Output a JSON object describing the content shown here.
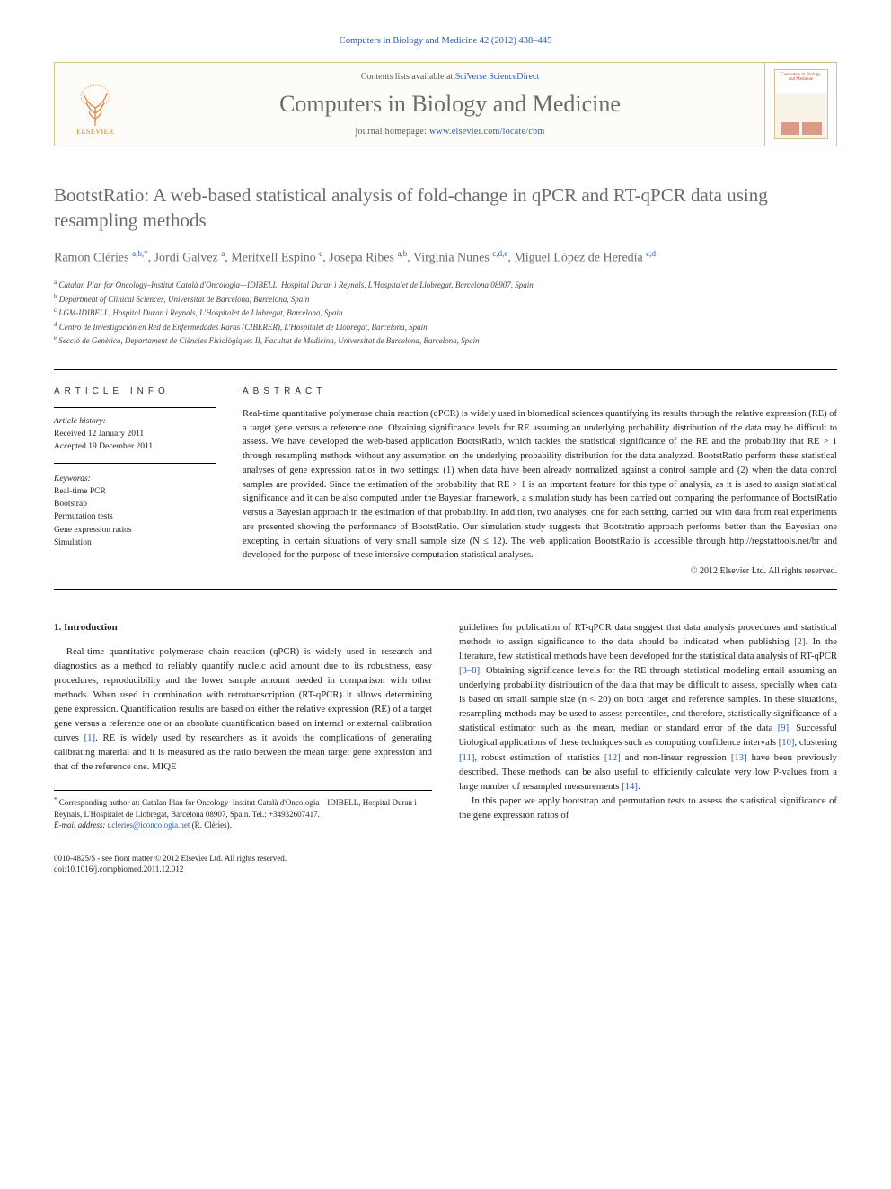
{
  "citation": {
    "journal_link": "Computers in Biology and Medicine",
    "vol_issue": "42 (2012) 438–445"
  },
  "banner": {
    "contents_prefix": "Contents lists available at ",
    "contents_link": "SciVerse ScienceDirect",
    "journal_name": "Computers in Biology and Medicine",
    "homepage_prefix": "journal homepage: ",
    "homepage_link": "www.elsevier.com/locate/cbm",
    "elsevier_label": "ELSEVIER",
    "cover_title": "Computers in Biology and Medicine"
  },
  "title": "BootstRatio: A web-based statistical analysis of fold-change in qPCR and RT-qPCR data using resampling methods",
  "authors_html": "Ramon Clèries <span class='sup'>a,b,*</span>, Jordi Galvez <span class='sup'>a</span>, Meritxell Espino <span class='sup'>c</span>, Josepa Ribes <span class='sup'>a,b</span>, Virginia Nunes <span class='sup'>c,d,e</span>, Miguel López de Heredia <span class='sup'>c,d</span>",
  "affiliations": [
    {
      "key": "a",
      "text": "Catalan Plan for Oncology–Institut Català d'Oncologia—IDIBELL, Hospital Duran i Reynals, L'Hospitalet de Llobregat, Barcelona 08907, Spain"
    },
    {
      "key": "b",
      "text": "Department of Clinical Sciences, Universitat de Barcelona, Barcelona, Spain"
    },
    {
      "key": "c",
      "text": "LGM-IDIBELL, Hospital Duran i Reynals, L'Hospitalet de Llobregat, Barcelona, Spain"
    },
    {
      "key": "d",
      "text": "Centro de Investigación en Red de Enfermedades Raras (CIBERER), L'Hospitalet de Llobregat, Barcelona, Spain"
    },
    {
      "key": "e",
      "text": "Secció de Genètica, Departament de Ciències Fisiològiques II, Facultat de Medicina, Universitat de Barcelona, Barcelona, Spain"
    }
  ],
  "info": {
    "heading": "ARTICLE INFO",
    "history_label": "Article history:",
    "received": "Received 12 January 2011",
    "accepted": "Accepted 19 December 2011",
    "keywords_label": "Keywords:",
    "keywords": [
      "Real-time PCR",
      "Bootstrap",
      "Permutation tests",
      "Gene expression ratios",
      "Simulation"
    ]
  },
  "abstract": {
    "heading": "ABSTRACT",
    "text": "Real-time quantitative polymerase chain reaction (qPCR) is widely used in biomedical sciences quantifying its results through the relative expression (RE) of a target gene versus a reference one. Obtaining significance levels for RE assuming an underlying probability distribution of the data may be difficult to assess. We have developed the web-based application BootstRatio, which tackles the statistical significance of the RE and the probability that RE > 1 through resampling methods without any assumption on the underlying probability distribution for the data analyzed. BootstRatio perform these statistical analyses of gene expression ratios in two settings: (1) when data have been already normalized against a control sample and (2) when the data control samples are provided. Since the estimation of the probability that RE > 1 is an important feature for this type of analysis, as it is used to assign statistical significance and it can be also computed under the Bayesian framework, a simulation study has been carried out comparing the performance of BootstRatio versus a Bayesian approach in the estimation of that probability. In addition, two analyses, one for each setting, carried out with data from real experiments are presented showing the performance of BootstRatio. Our simulation study suggests that Bootstratio approach performs better than the Bayesian one excepting in certain situations of very small sample size (N ≤ 12). The web application BootstRatio is accessible through http://regstattools.net/br and developed for the purpose of these intensive computation statistical analyses.",
    "copyright": "© 2012 Elsevier Ltd. All rights reserved."
  },
  "intro": {
    "heading": "1. Introduction",
    "p1": "Real-time quantitative polymerase chain reaction (qPCR) is widely used in research and diagnostics as a method to reliably quantify nucleic acid amount due to its robustness, easy procedures, reproducibility and the lower sample amount needed in comparison with other methods. When used in combination with retrotranscription (RT-qPCR) it allows determining gene expression. Quantification results are based on either the relative expression (RE) of a target gene versus a reference one or an absolute quantification based on internal or external calibration curves [1]. RE is widely used by researchers as it avoids the complications of generating calibrating material and it is measured as the ratio between the mean target gene expression and that of the reference one. MIQE",
    "p2": "guidelines for publication of RT-qPCR data suggest that data analysis procedures and statistical methods to assign significance to the data should be indicated when publishing [2]. In the literature, few statistical methods have been developed for the statistical data analysis of RT-qPCR [3–8]. Obtaining significance levels for the RE through statistical modeling entail assuming an underlying probability distribution of the data that may be difficult to assess, specially when data is based on small sample size (n < 20) on both target and reference samples. In these situations, resampling methods may be used to assess percentiles, and therefore, statistically significance of a statistical estimator such as the mean, median or standard error of the data [9]. Successful biological applications of these techniques such as computing confidence intervals [10], clustering [11], robust estimation of statistics [12] and non-linear regression [13] have been previously described. These methods can be also useful to efficiently calculate very low P-values from a large number of resampled measurements [14].",
    "p3": "In this paper we apply bootstrap and permutation tests to assess the statistical significance of the gene expression ratios of"
  },
  "footnote": {
    "corr_label": "*",
    "corr_text": "Corresponding author at: Catalan Plan for Oncology–Institut Català d'Oncologia—IDIBELL, Hospital Duran i Reynals, L'Hospitalet de Llobregat, Barcelona 08907, Spain. Tel.: +34932607417.",
    "email_label": "E-mail address:",
    "email": "r.cleries@iconcologia.net",
    "email_name": "(R. Clèries)."
  },
  "footer": {
    "issn_line": "0010-4825/$ - see front matter © 2012 Elsevier Ltd. All rights reserved.",
    "doi_line": "doi:10.1016/j.compbiomed.2011.12.012"
  },
  "colors": {
    "link": "#2a5caa",
    "grey_text": "#6b6b6b",
    "border": "#d5c090",
    "orange": "#e67a2e"
  }
}
